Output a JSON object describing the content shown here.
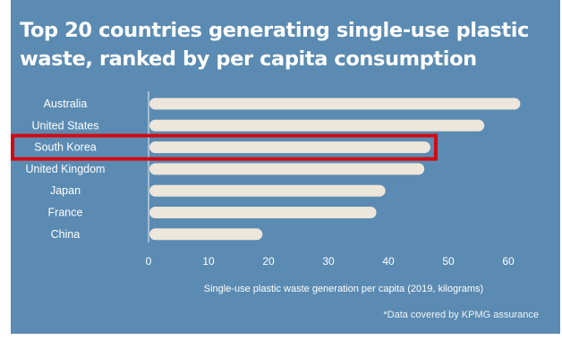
{
  "title": "Top 20 countries generating single-use plastic waste, ranked by per capita consumption",
  "footnote": "*Data covered by KPMG assurance",
  "colors": {
    "background": "#5b8bb2",
    "bar": "#ede6da",
    "text": "#ffffff",
    "highlight_box": "#d10a14",
    "axis": "#e9eef4"
  },
  "highlight": "South Korea",
  "chart_data": {
    "type": "bar",
    "orientation": "horizontal",
    "categories": [
      "Australia",
      "United States",
      "South Korea",
      "United Kingdom",
      "Japan",
      "France",
      "China"
    ],
    "values": [
      62,
      56,
      47,
      46,
      39.5,
      38,
      19
    ],
    "xlabel": "Single-use plastic waste generation per capita (2019, kilograms)",
    "ylabel": "",
    "xlim": [
      0,
      60
    ],
    "xticks": [
      0,
      10,
      20,
      30,
      40,
      50,
      60
    ],
    "grid": false,
    "legend": "none"
  }
}
